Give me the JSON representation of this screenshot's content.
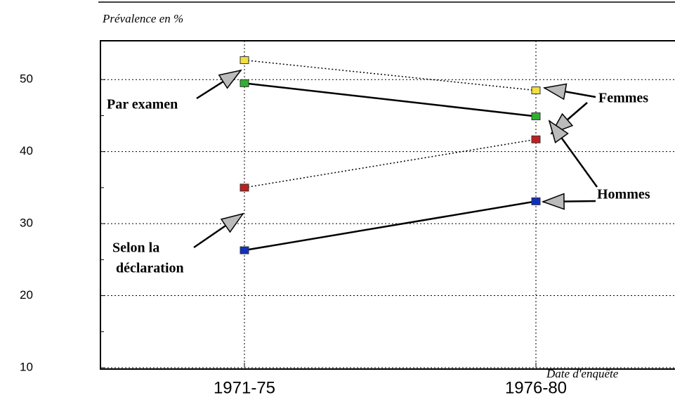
{
  "chart_data": {
    "type": "line",
    "y_axis_label": "Prévalence en %",
    "x_axis_label": "Date d'enquête",
    "categories": [
      "1971-75",
      "1976-80"
    ],
    "series": [
      {
        "color": "#f0e040",
        "line_style": "dotted",
        "values": [
          52.7,
          48.5
        ]
      },
      {
        "color": "#30b030",
        "line_style": "solid",
        "values": [
          49.5,
          44.9
        ]
      },
      {
        "color": "#c02020",
        "line_style": "dotted",
        "values": [
          35,
          41.7
        ]
      },
      {
        "color": "#1030c0",
        "line_style": "solid",
        "values": [
          26.3,
          33.1
        ]
      }
    ],
    "annotations": [
      "Par examen",
      "Femmes",
      "Hommes",
      "Selon la",
      "déclaration"
    ],
    "ylim": [
      10,
      55
    ],
    "yticks": [
      10,
      20,
      30,
      40,
      50
    ],
    "yminorticks": [
      15,
      25,
      35,
      45
    ],
    "grid": true
  }
}
